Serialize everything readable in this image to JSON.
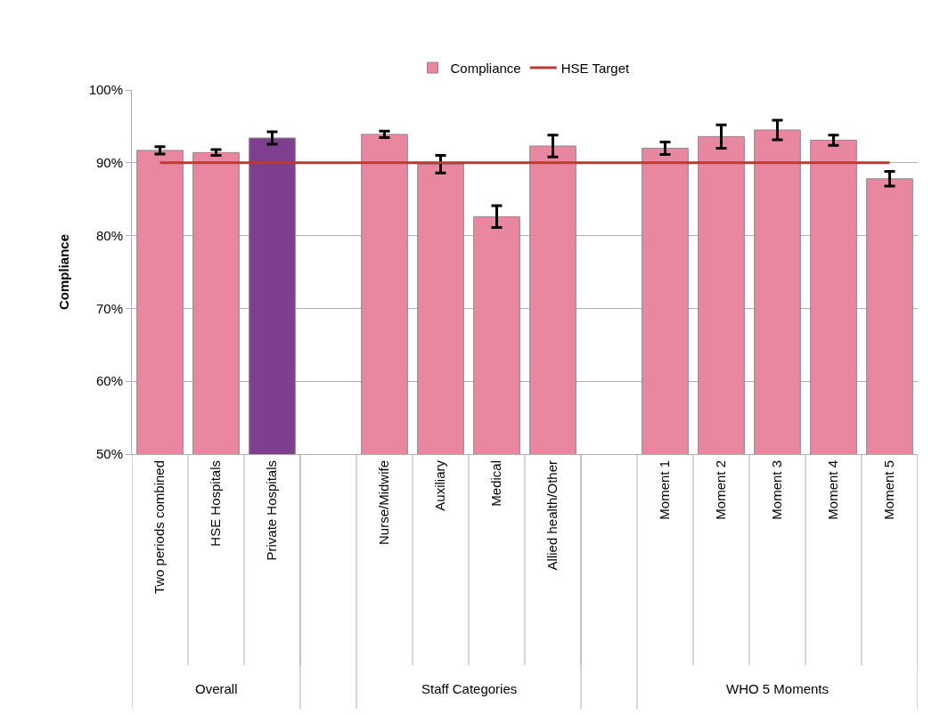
{
  "chart_data": {
    "type": "bar",
    "ylabel": "Compliance",
    "categories": [
      "Two periods combined",
      "HSE Hospitals",
      "Private Hospitals",
      null,
      "Nurse/Midwife",
      "Auxiliary",
      "Medical",
      "Allied health/Other",
      null,
      "Moment 1",
      "Moment 2",
      "Moment 3",
      "Moment 4",
      "Moment 5"
    ],
    "series": [
      {
        "name": "Compliance",
        "color": "#e8879f",
        "colors": [
          "#e8879f",
          "#e8879f",
          "#7f3f8f",
          null,
          "#e8879f",
          "#e8879f",
          "#e8879f",
          "#e8879f",
          null,
          "#e8879f",
          "#e8879f",
          "#e8879f",
          "#e8879f",
          "#e8879f"
        ],
        "values": [
          91.7,
          91.4,
          93.4,
          null,
          93.9,
          89.8,
          82.6,
          92.3,
          null,
          92.0,
          93.6,
          94.5,
          93.1,
          87.8
        ],
        "errors": [
          0.5,
          0.4,
          0.85,
          null,
          0.45,
          1.2,
          1.5,
          1.5,
          null,
          0.85,
          1.6,
          1.35,
          0.7,
          1.0
        ]
      }
    ],
    "ref_lines": [
      {
        "axis": "y",
        "value": 90,
        "label": "HSE Target",
        "color": "#c0392b"
      }
    ],
    "annotations": [
      "Overall",
      "Staff Categories",
      "WHO 5 Moments"
    ],
    "ylim": [
      50,
      100
    ],
    "yticks": [
      {
        "value": 50,
        "label": "50%"
      },
      {
        "value": 60,
        "label": "60%"
      },
      {
        "value": 70,
        "label": "70%"
      },
      {
        "value": 80,
        "label": "80%"
      },
      {
        "value": 90,
        "label": "90%"
      },
      {
        "value": 100,
        "label": "100%"
      }
    ],
    "grid": "y",
    "legend": "top"
  }
}
